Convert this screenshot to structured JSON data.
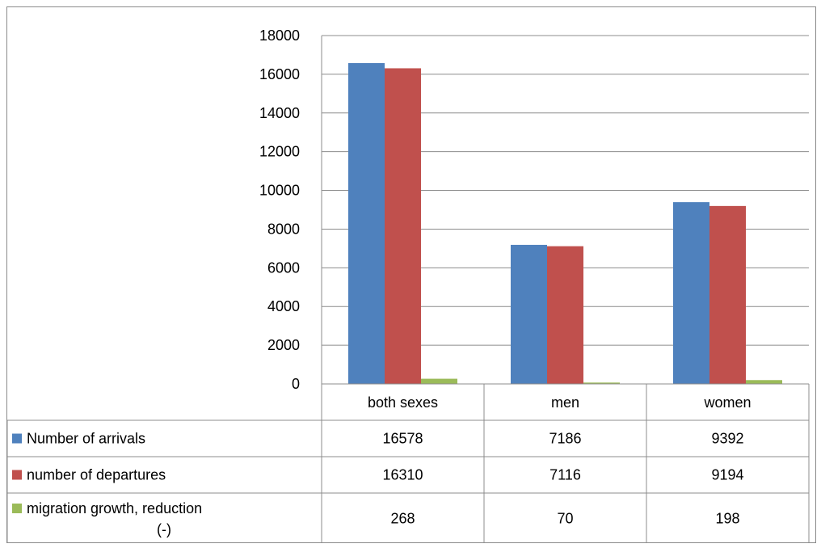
{
  "chart_data": {
    "type": "bar",
    "categories": [
      "both sexes",
      "men",
      "women"
    ],
    "series": [
      {
        "name": "Number of arrivals",
        "values": [
          16578,
          7186,
          9392
        ],
        "color": "#4F81BD"
      },
      {
        "name": "number of departures",
        "values": [
          16310,
          7116,
          9194
        ],
        "color": "#C0504D"
      },
      {
        "name": "migration growth, reduction (-)",
        "values": [
          268,
          70,
          198
        ],
        "color": "#9BBB59"
      }
    ],
    "y_ticks": [
      "0",
      "2000",
      "4000",
      "6000",
      "8000",
      "10000",
      "12000",
      "14000",
      "16000",
      "18000"
    ],
    "ylim": [
      0,
      18000
    ],
    "grid": true,
    "legend": "data-table",
    "table": {
      "rows": [
        {
          "legend_label": "Number of arrivals",
          "values": [
            "16578",
            "7186",
            "9392"
          ]
        },
        {
          "legend_label": "number of departures",
          "values": [
            "16310",
            "7116",
            "9194"
          ]
        },
        {
          "legend_label_lines": [
            "migration growth, reduction",
            "(-)"
          ],
          "values": [
            "268",
            "70",
            "198"
          ]
        }
      ]
    }
  }
}
